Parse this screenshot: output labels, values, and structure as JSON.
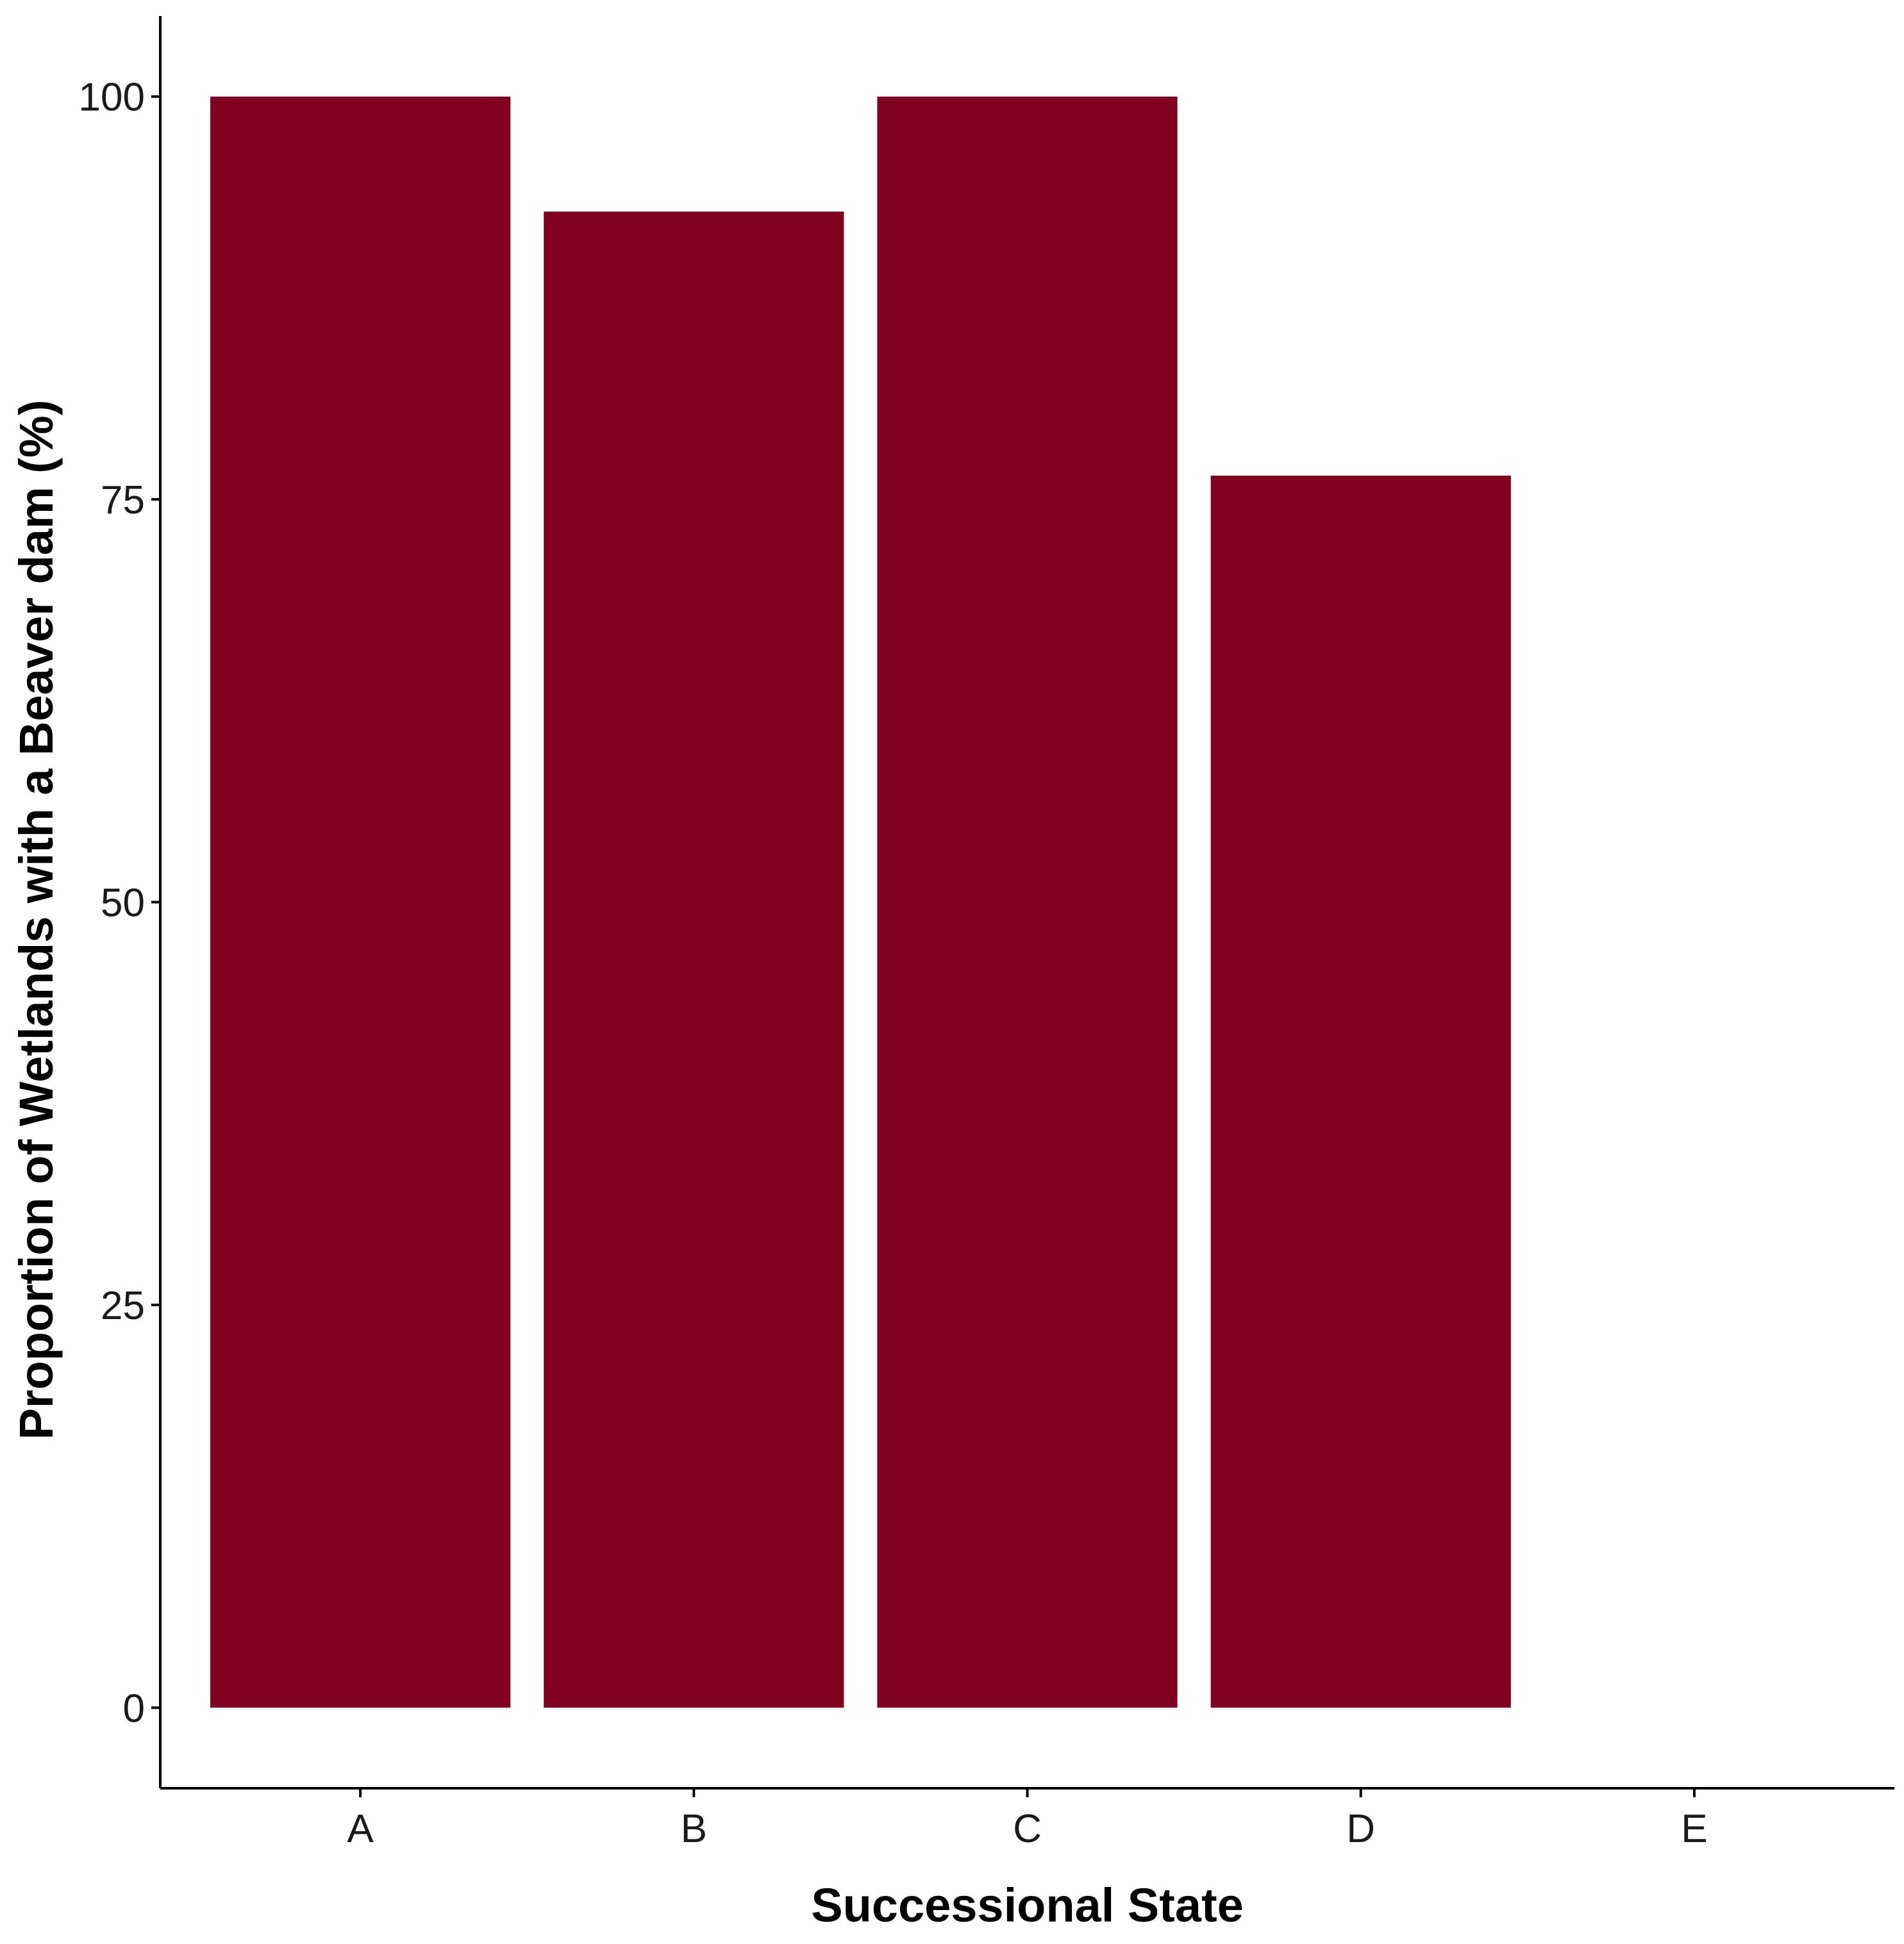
{
  "chart_data": {
    "type": "bar",
    "categories": [
      "A",
      "B",
      "C",
      "D",
      "E"
    ],
    "values": [
      100,
      92.86,
      100,
      76.47,
      0
    ],
    "xlabel": "Successional State",
    "ylabel": "Proportion of Wetlands with a Beaver dam (%)",
    "ylim": [
      -5,
      105
    ],
    "yticks": [
      0,
      25,
      50,
      75,
      100
    ],
    "bar_color": "#800020",
    "grid": false,
    "legend": "none"
  }
}
